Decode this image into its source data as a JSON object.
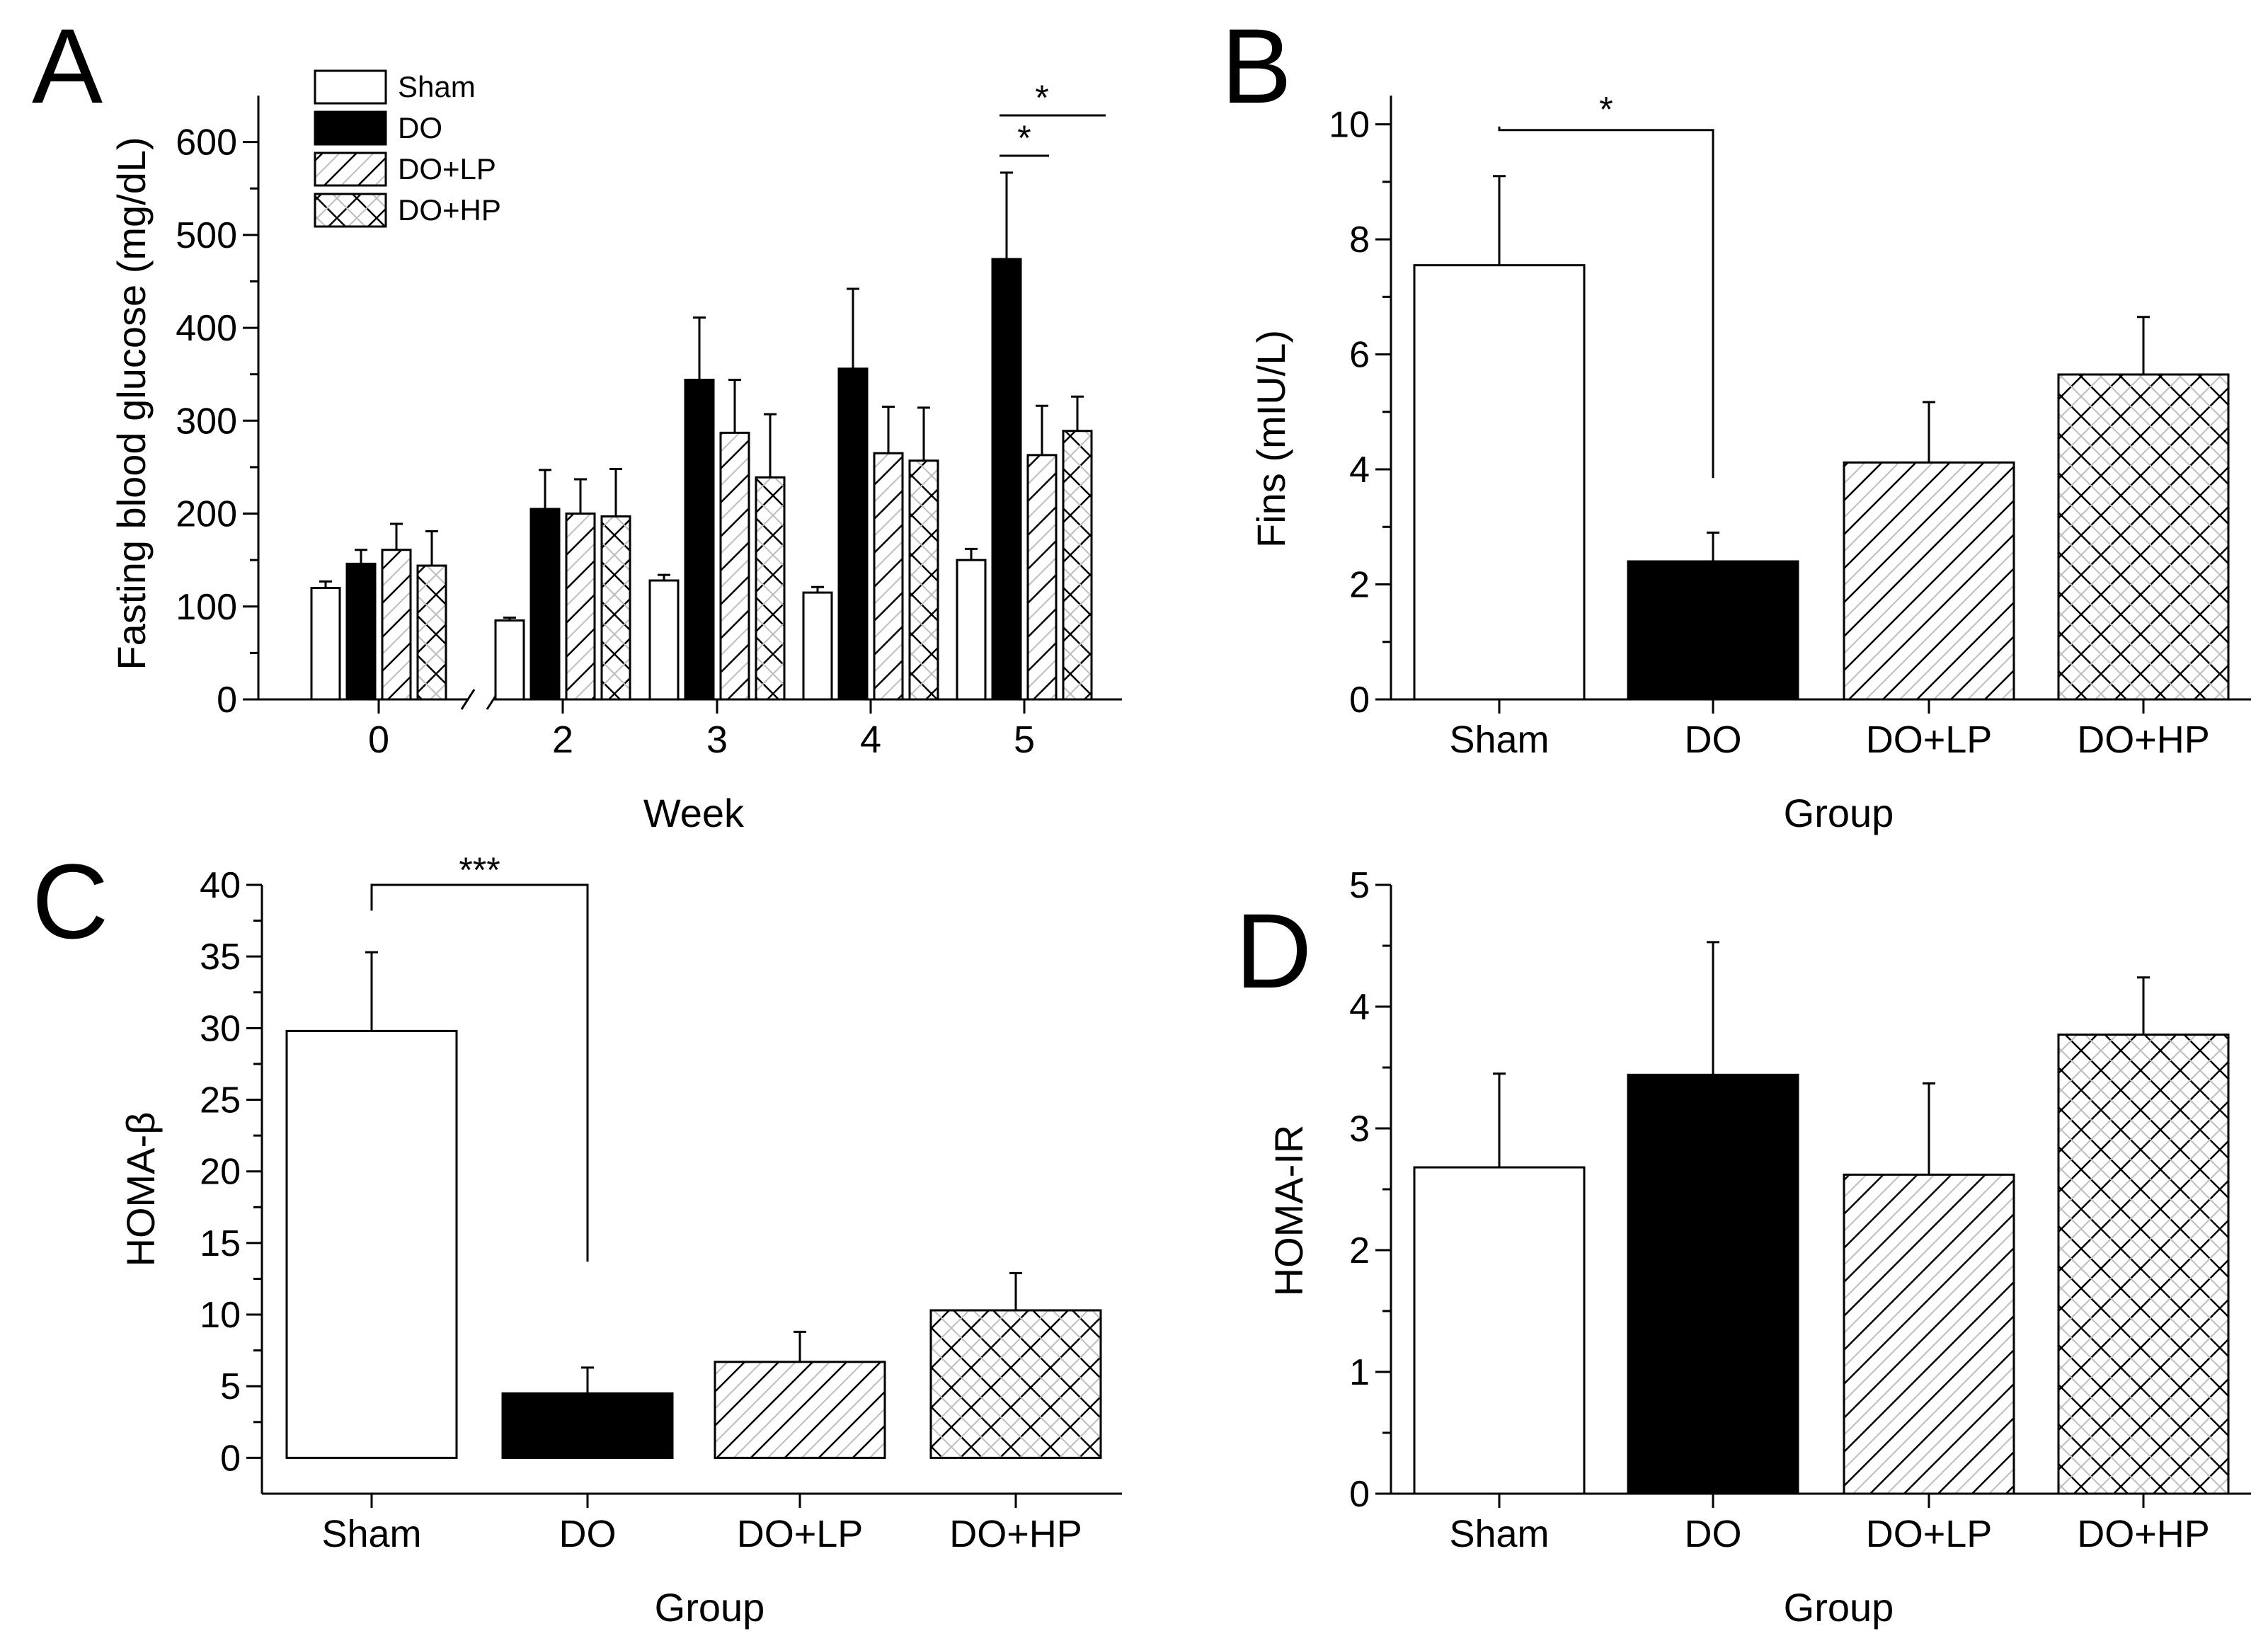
{
  "panels": [
    {
      "label": "A"
    },
    {
      "label": "B"
    },
    {
      "label": "C"
    },
    {
      "label": "D"
    }
  ],
  "legend": [
    "Sham",
    "DO",
    "DO+LP",
    "DO+HP"
  ],
  "significance": {
    "A": [
      "*",
      "*"
    ],
    "B": "*",
    "C": "***"
  },
  "colors": {
    "ink": "#000000",
    "background": "#ffffff",
    "pattern_light": "#bdbdbd"
  },
  "chart_data": [
    {
      "panel": "A",
      "type": "bar",
      "xlabel": "Week",
      "ylabel": "Fasting blood glucose (mg/dL)",
      "categories": [
        "0",
        "2",
        "3",
        "4",
        "5"
      ],
      "ylim": [
        0,
        650
      ],
      "yticks": [
        0,
        100,
        200,
        300,
        400,
        500,
        600
      ],
      "axis_break": "between 0 and 2",
      "legend_position": "top-left",
      "series": [
        {
          "name": "Sham",
          "values": [
            120,
            85,
            128,
            115,
            150
          ],
          "errors": [
            7,
            3,
            6,
            6,
            12
          ]
        },
        {
          "name": "DO",
          "values": [
            146,
            205,
            344,
            356,
            474
          ],
          "errors": [
            15,
            42,
            67,
            86,
            93
          ]
        },
        {
          "name": "DO+LP",
          "values": [
            161,
            200,
            287,
            265,
            263
          ],
          "errors": [
            28,
            37,
            57,
            50,
            53
          ]
        },
        {
          "name": "DO+HP",
          "values": [
            144,
            197,
            239,
            257,
            289
          ],
          "errors": [
            37,
            51,
            68,
            57,
            37
          ]
        }
      ]
    },
    {
      "panel": "B",
      "type": "bar",
      "xlabel": "Group",
      "ylabel": "Fins (mIU/L)",
      "categories": [
        "Sham",
        "DO",
        "DO+LP",
        "DO+HP"
      ],
      "values": [
        7.55,
        2.4,
        4.12,
        5.65
      ],
      "errors": [
        1.55,
        0.5,
        1.05,
        1.0
      ],
      "ylim": [
        0,
        10.5
      ],
      "yticks": [
        0,
        2,
        4,
        6,
        8,
        10
      ]
    },
    {
      "panel": "C",
      "type": "bar",
      "xlabel": "Group",
      "ylabel": "HOMA-β",
      "categories": [
        "Sham",
        "DO",
        "DO+LP",
        "DO+HP"
      ],
      "values": [
        29.8,
        4.5,
        6.7,
        10.3
      ],
      "errors": [
        5.5,
        1.8,
        2.1,
        2.6
      ],
      "ylim": [
        -2.5,
        40
      ],
      "yticks": [
        0,
        5,
        10,
        15,
        20,
        25,
        30,
        35,
        40
      ]
    },
    {
      "panel": "D",
      "type": "bar",
      "xlabel": "Group",
      "ylabel": "HOMA-IR",
      "categories": [
        "Sham",
        "DO",
        "DO+LP",
        "DO+HP"
      ],
      "values": [
        2.68,
        3.44,
        2.62,
        3.77
      ],
      "errors": [
        0.77,
        1.09,
        0.75,
        0.47
      ],
      "ylim": [
        0,
        5
      ],
      "yticks": [
        0,
        1,
        2,
        3,
        4,
        5
      ]
    }
  ]
}
